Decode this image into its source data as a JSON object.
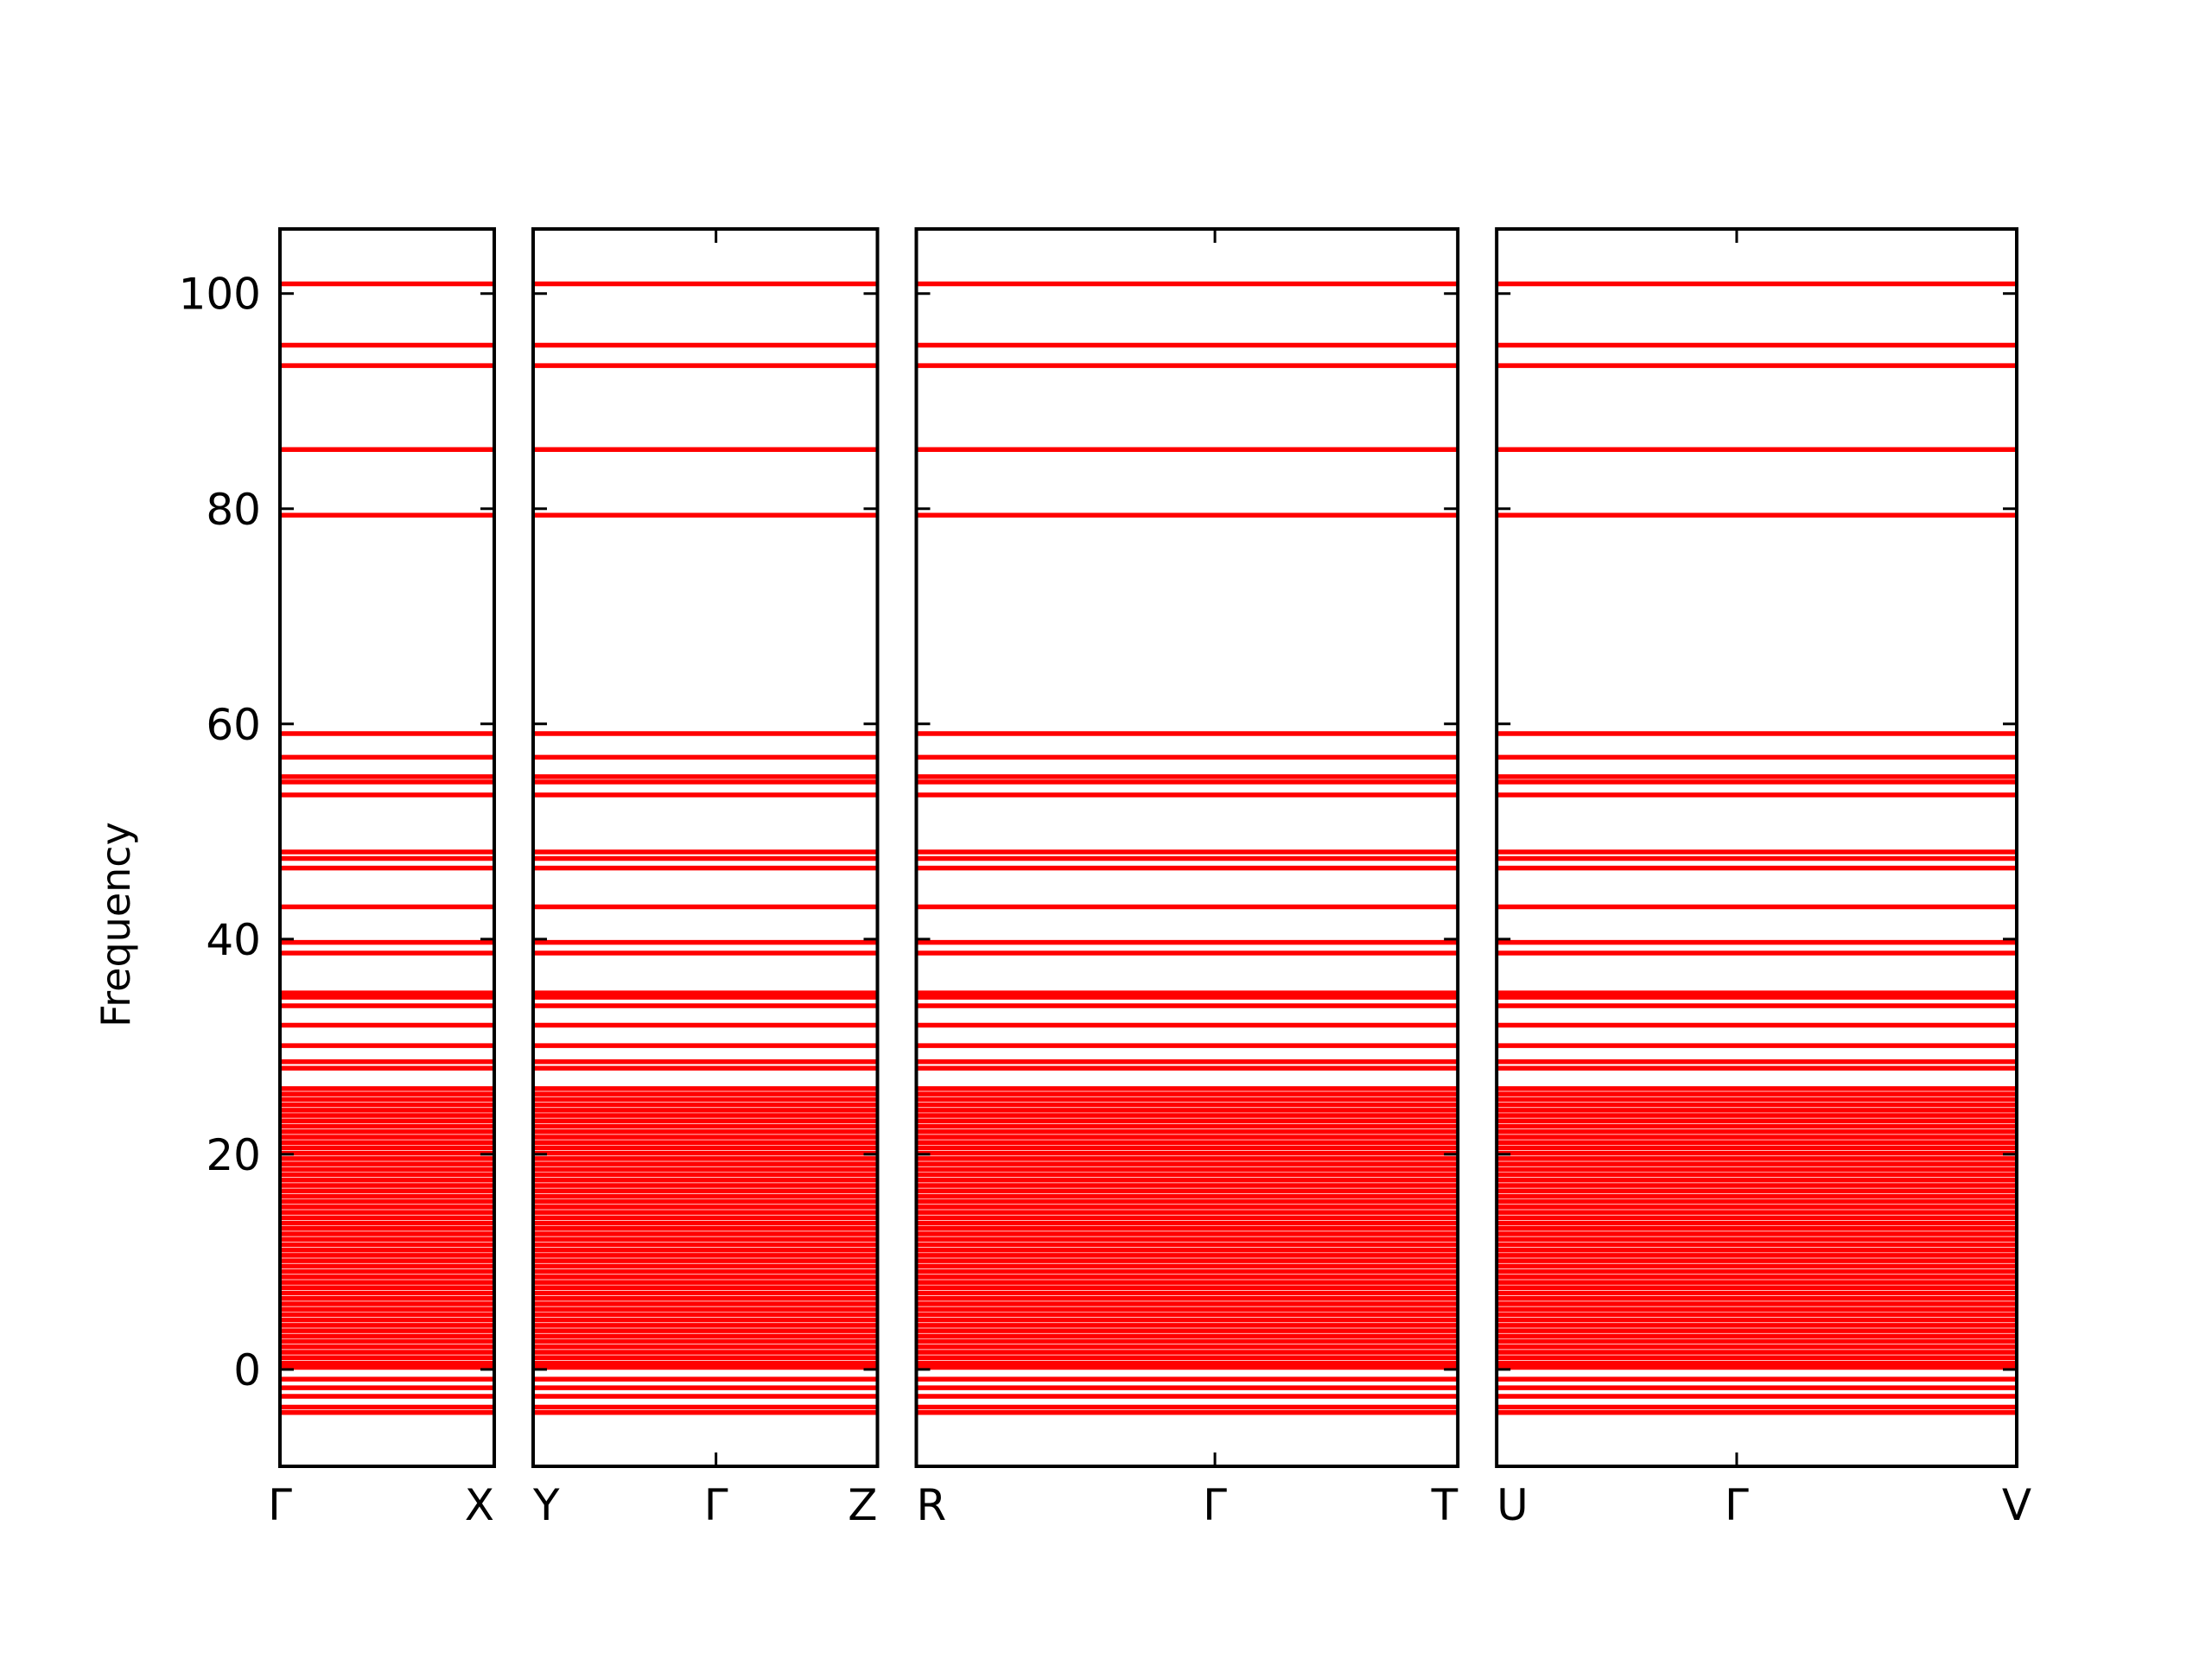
{
  "chart_data": {
    "type": "bands",
    "y_label": "Frequency",
    "color": "#ff0000",
    "ylim": [
      -9,
      106
    ],
    "yticks": [
      0,
      20,
      40,
      60,
      80,
      100
    ],
    "panels": [
      {
        "xlim": [
          0,
          1.5
        ],
        "xticks": [
          {
            "value": 0,
            "label": "Γ"
          },
          {
            "value": 1.5,
            "label": "X"
          }
        ]
      },
      {
        "xlim": [
          1.5,
          3.91
        ],
        "xticks": [
          {
            "value": 1.5,
            "label": "Y"
          },
          {
            "value": 2.78,
            "label": "Γ"
          },
          {
            "value": 3.91,
            "label": "Z"
          }
        ]
      },
      {
        "xlim": [
          3.91,
          7.7
        ],
        "xticks": [
          {
            "value": 3.91,
            "label": "R"
          },
          {
            "value": 6.0,
            "label": "Γ"
          },
          {
            "value": 7.7,
            "label": "T"
          }
        ]
      },
      {
        "xlim": [
          7.7,
          11.34
        ],
        "xticks": [
          {
            "value": 7.7,
            "label": "U"
          },
          {
            "value": 9.38,
            "label": "Γ"
          },
          {
            "value": 11.34,
            "label": "V"
          }
        ]
      }
    ],
    "bands": [
      100.9,
      95.2,
      93.3,
      85.5,
      79.4,
      59.1,
      56.9,
      55.1,
      54.6,
      53.4,
      48.1,
      47.5,
      46.6,
      43.0,
      39.7,
      38.7,
      35.0,
      34.6,
      33.8,
      32.0,
      30.1,
      28.6,
      28.0,
      26.1,
      25.6,
      25.1,
      24.6,
      24.1,
      23.6,
      23.1,
      22.6,
      22.1,
      21.6,
      21.1,
      20.6,
      20.1,
      19.6,
      19.1,
      18.6,
      18.1,
      17.6,
      17.1,
      16.6,
      16.1,
      15.6,
      15.1,
      14.6,
      14.1,
      13.6,
      13.1,
      12.6,
      12.1,
      11.6,
      11.1,
      10.6,
      10.1,
      9.6,
      9.1,
      8.6,
      8.1,
      7.6,
      7.1,
      6.6,
      6.1,
      5.6,
      5.1,
      4.6,
      4.1,
      3.6,
      3.1,
      2.6,
      2.1,
      1.6,
      1.1,
      0.6,
      0.2,
      -0.9,
      -1.7,
      -2.5,
      -3.5,
      -4.0
    ]
  }
}
